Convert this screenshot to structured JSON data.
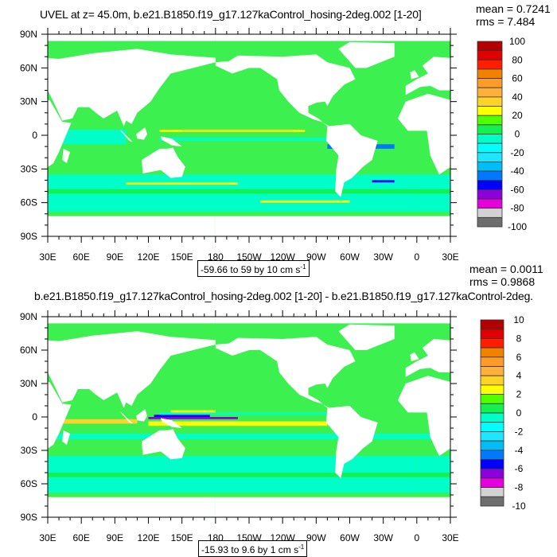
{
  "panels": [
    {
      "title": "UVEL at z=  45.0m, b.e21.B1850.f19_g17.127kaControl_hosing-2deg.002 [1-20]",
      "mean": "mean = 0.7241",
      "rms": "rms = 7.484",
      "contour_info": "-59.66 to 59 by 10 cm s",
      "contour_sup": "-1",
      "colorbar_labels": [
        "100",
        "80",
        "60",
        "40",
        "20",
        "0",
        "-20",
        "-40",
        "-60",
        "-80",
        "-100"
      ]
    },
    {
      "title": "b.e21.B1850.f19_g17.127kaControl_hosing-2deg.002 [1-20] - b.e21.B1850.f19_g17.127kaControl-2deg.",
      "mean": "mean = 0.0011",
      "rms": "rms = 0.9868",
      "contour_info": "-15.93 to 9.6 by 1 cm s",
      "contour_sup": "-1",
      "colorbar_labels": [
        "10",
        "8",
        "6",
        "4",
        "2",
        "0",
        "-2",
        "-4",
        "-6",
        "-8",
        "-10"
      ]
    }
  ],
  "axes": {
    "lon_labels": [
      "30E",
      "60E",
      "90E",
      "120E",
      "150E",
      "180",
      "150W",
      "120W",
      "90W",
      "60W",
      "30W",
      "0",
      "30E"
    ],
    "lat_labels": [
      "90N",
      "60N",
      "30N",
      "0",
      "30S",
      "60S",
      "90S"
    ]
  },
  "colors": [
    "#b40000",
    "#e00000",
    "#ff1e00",
    "#f08200",
    "#ff9b28",
    "#ffb03c",
    "#ffd228",
    "#ffff00",
    "#50ff00",
    "#14f050",
    "#00ffc8",
    "#00ffff",
    "#1ee6ff",
    "#00bef5",
    "#0078ff",
    "#0000ff",
    "#8c00dc",
    "#e600dc",
    "#d2d2d2",
    "#6e6e6e"
  ]
}
